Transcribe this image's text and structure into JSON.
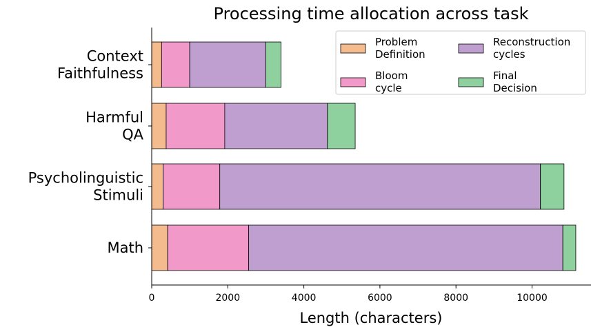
{
  "chart_data": {
    "type": "bar",
    "orientation": "horizontal",
    "stacked": true,
    "title": "Processing time allocation across task",
    "xlabel": "Length (characters)",
    "ylabel": "",
    "xlim": [
      0,
      11550
    ],
    "xticks": [
      0,
      2000,
      4000,
      6000,
      8000,
      10000
    ],
    "xtick_labels": [
      "0",
      "2000",
      "4000",
      "6000",
      "8000",
      "10000"
    ],
    "grid": false,
    "legend_position": "top-right",
    "categories": [
      {
        "lines": [
          "Context",
          "Faithfulness"
        ]
      },
      {
        "lines": [
          "Harmful",
          "QA"
        ]
      },
      {
        "lines": [
          "Psycholinguistic",
          "Stimuli"
        ]
      },
      {
        "lines": [
          "Math"
        ]
      }
    ],
    "series": [
      {
        "name_lines": [
          "Problem",
          "Definition"
        ],
        "color": "#f4bb8e",
        "values": [
          260,
          380,
          300,
          420
        ]
      },
      {
        "name_lines": [
          "Bloom",
          "cycle"
        ],
        "color": "#f19ac9",
        "values": [
          740,
          1540,
          1490,
          2130
        ]
      },
      {
        "name_lines": [
          "Reconstruction",
          "cycles"
        ],
        "color": "#be9fd0",
        "values": [
          2000,
          2700,
          8430,
          8260
        ]
      },
      {
        "name_lines": [
          "Final",
          "Decision"
        ],
        "color": "#8fd19e",
        "values": [
          400,
          730,
          620,
          340
        ]
      }
    ]
  }
}
